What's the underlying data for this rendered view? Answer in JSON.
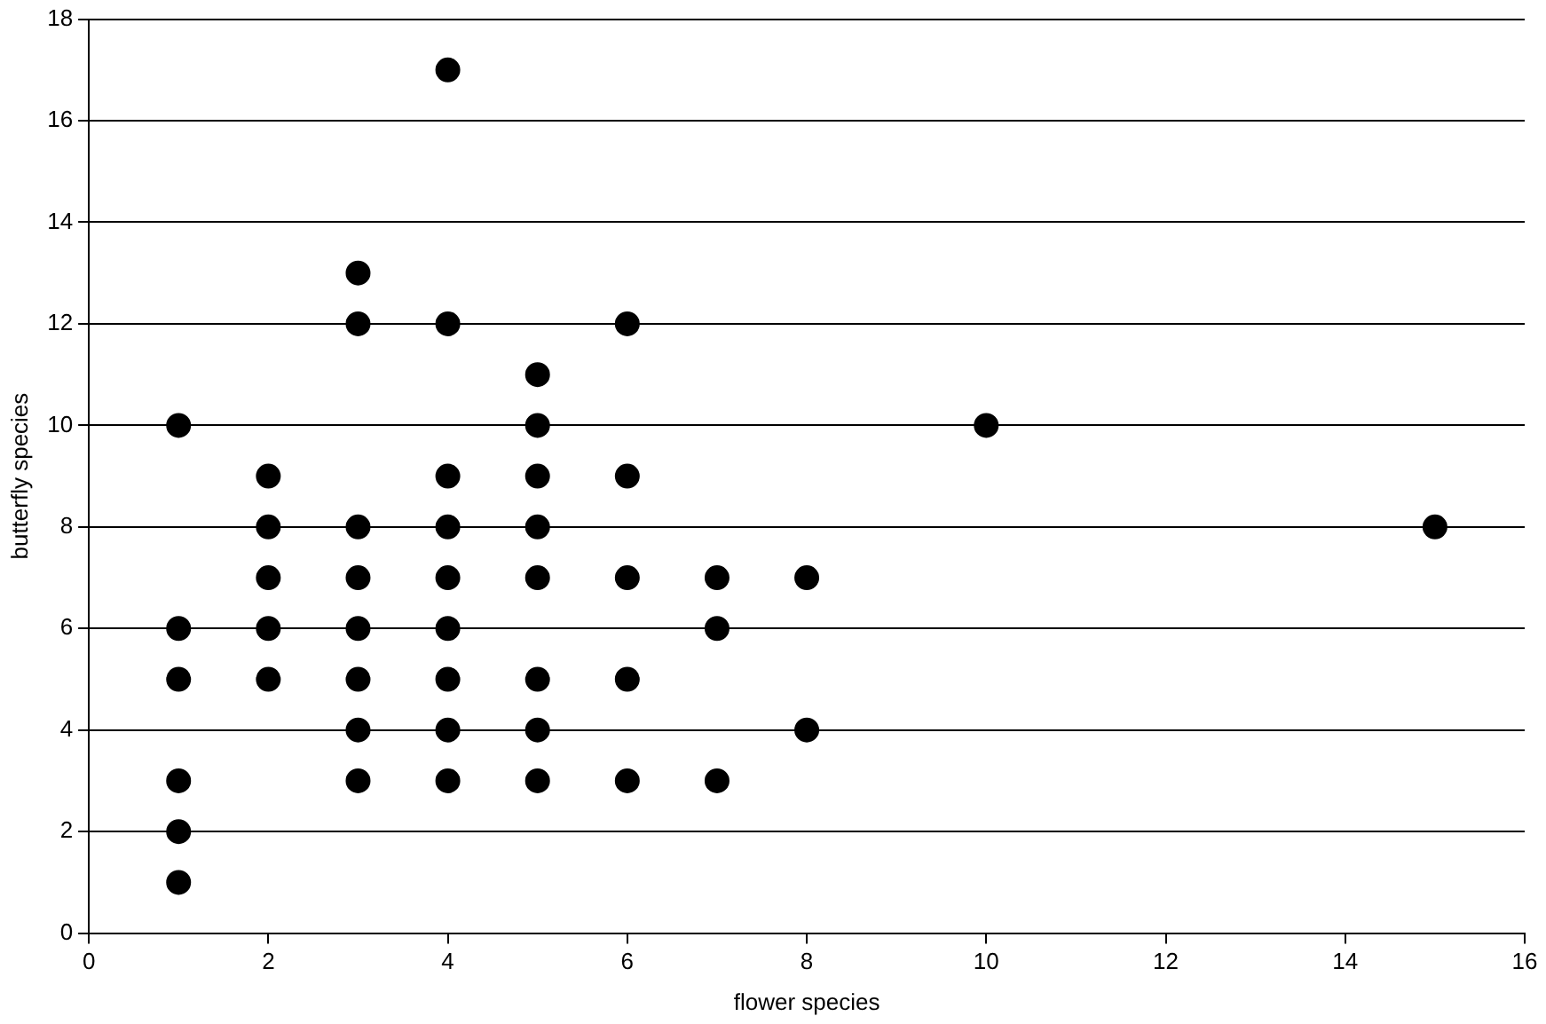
{
  "chart_data": {
    "type": "scatter",
    "xlabel": "flower species",
    "ylabel": "butterfly species",
    "series": [
      {
        "color": "#000000",
        "x": [
          1,
          1,
          1,
          1,
          1,
          1,
          2,
          2,
          2,
          2,
          2,
          3,
          3,
          3,
          3,
          3,
          3,
          3,
          3,
          4,
          4,
          4,
          4,
          4,
          4,
          4,
          4,
          4,
          5,
          5,
          5,
          5,
          5,
          5,
          5,
          5,
          6,
          6,
          6,
          6,
          6,
          7,
          7,
          7,
          8,
          8,
          10,
          15
        ],
        "values": [
          10,
          6,
          5,
          3,
          2,
          1,
          9,
          8,
          7,
          6,
          5,
          13,
          12,
          8,
          7,
          6,
          5,
          4,
          3,
          17,
          12,
          9,
          8,
          7,
          6,
          5,
          4,
          3,
          11,
          10,
          9,
          8,
          7,
          5,
          4,
          3,
          12,
          9,
          7,
          5,
          3,
          7,
          6,
          3,
          7,
          4,
          10,
          8
        ]
      }
    ],
    "xlim": [
      0,
      16
    ],
    "xticks": [
      0,
      2,
      4,
      6,
      8,
      10,
      12,
      14,
      16
    ],
    "ylim": [
      0,
      18
    ],
    "yticks": [
      0,
      2,
      4,
      6,
      8,
      10,
      12,
      14,
      16,
      18
    ],
    "grid": "y",
    "legend": false,
    "marker": "circle"
  }
}
